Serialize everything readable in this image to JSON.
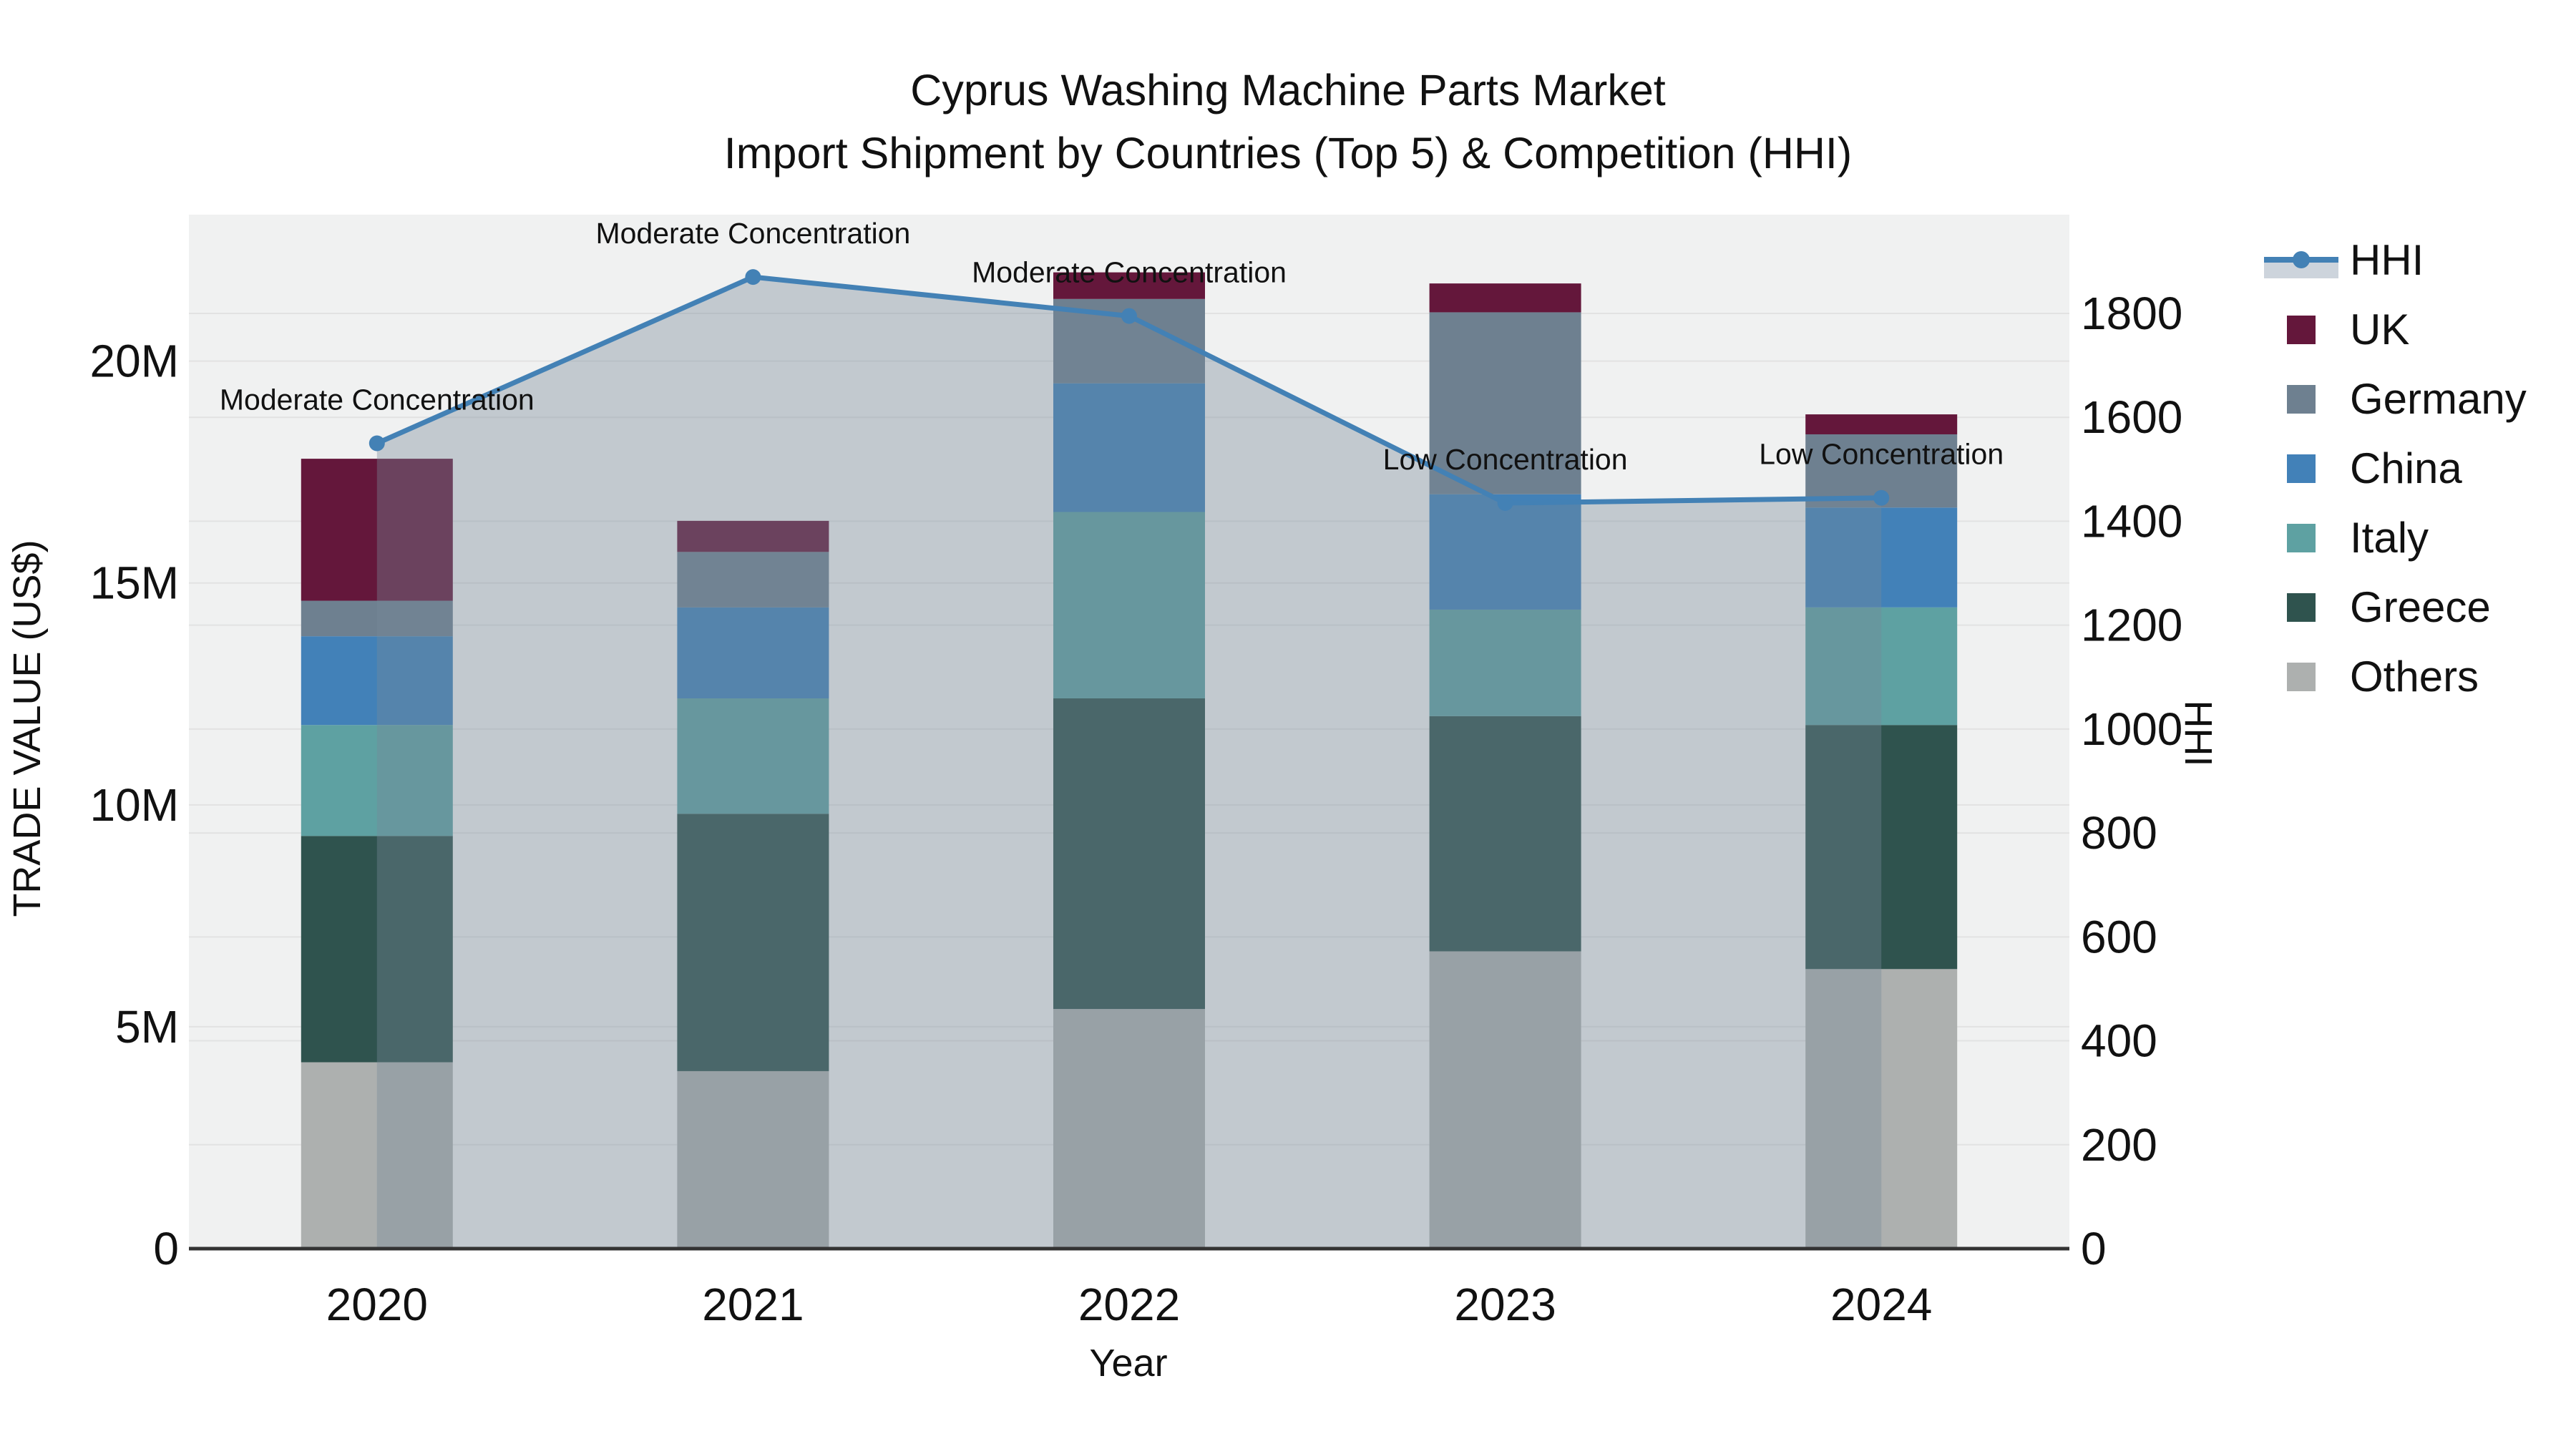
{
  "title": {
    "line1": "Cyprus Washing Machine Parts Market",
    "line2": "Import Shipment by Countries (Top 5) & Competition (HHI)"
  },
  "axes": {
    "x_title": "Year",
    "y_left_title": "TRADE VALUE (US$)",
    "y_right_title": "HHI",
    "x_ticks": [
      "2020",
      "2021",
      "2022",
      "2023",
      "2024"
    ],
    "y_left_ticks": [
      {
        "label": "0",
        "value": 0
      },
      {
        "label": "5M",
        "value": 5
      },
      {
        "label": "10M",
        "value": 10
      },
      {
        "label": "15M",
        "value": 15
      },
      {
        "label": "20M",
        "value": 20
      }
    ],
    "y_right_ticks": [
      0,
      200,
      400,
      600,
      800,
      1000,
      1200,
      1400,
      1600,
      1800
    ]
  },
  "legend": [
    {
      "label": "HHI",
      "type": "line",
      "color": "#4381b5",
      "fill": "#cdd4dc"
    },
    {
      "label": "UK",
      "type": "square",
      "color": "#64173b"
    },
    {
      "label": "Germany",
      "type": "square",
      "color": "#6e8090"
    },
    {
      "label": "China",
      "type": "square",
      "color": "#4281b8"
    },
    {
      "label": "Italy",
      "type": "square",
      "color": "#5ea1a2"
    },
    {
      "label": "Greece",
      "type": "square",
      "color": "#2f534e"
    },
    {
      "label": "Others",
      "type": "square",
      "color": "#adb0af"
    }
  ],
  "chart_data": {
    "type": "bar",
    "subtype": "stacked-bars-with-dual-axis-line",
    "title": "Cyprus Washing Machine Parts Market — Import Shipment by Countries (Top 5) & Competition (HHI)",
    "xlabel": "Year",
    "ylabel_left": "TRADE VALUE (US$)",
    "ylabel_right": "HHI",
    "y_left_units": "millions of US$",
    "y_left_range_millions": [
      0,
      23.3
    ],
    "y_right_range": [
      0,
      1990
    ],
    "grid": true,
    "legend_position": "right",
    "categories": [
      "2020",
      "2021",
      "2022",
      "2023",
      "2024"
    ],
    "bar_series": [
      {
        "name": "Others",
        "color": "#adb0af",
        "values_millions": [
          4.2,
          4.0,
          5.4,
          6.7,
          6.3
        ]
      },
      {
        "name": "Greece",
        "color": "#2f534e",
        "values_millions": [
          5.1,
          5.8,
          7.0,
          5.3,
          5.5
        ]
      },
      {
        "name": "Italy",
        "color": "#5ea1a2",
        "values_millions": [
          2.5,
          2.6,
          4.2,
          2.4,
          2.65
        ]
      },
      {
        "name": "China",
        "color": "#4281b8",
        "values_millions": [
          2.0,
          2.05,
          2.9,
          2.6,
          2.25
        ]
      },
      {
        "name": "Germany",
        "color": "#6e8090",
        "values_millions": [
          0.8,
          1.25,
          1.9,
          4.1,
          1.65
        ]
      },
      {
        "name": "UK",
        "color": "#64173b",
        "values_millions": [
          3.2,
          0.7,
          0.6,
          0.65,
          0.45
        ]
      }
    ],
    "bar_totals_millions": [
      17.8,
      16.4,
      22.0,
      21.75,
      18.8
    ],
    "line_series": {
      "name": "HHI",
      "axis": "right",
      "color": "#4381b5",
      "area_fill": "rgba(119,136,153,0.38)",
      "values": [
        1550,
        1870,
        1795,
        1435,
        1445
      ]
    },
    "annotations": [
      {
        "category": "2020",
        "text": "Moderate Concentration"
      },
      {
        "category": "2021",
        "text": "Moderate Concentration"
      },
      {
        "category": "2022",
        "text": "Moderate Concentration"
      },
      {
        "category": "2023",
        "text": "Low Concentration"
      },
      {
        "category": "2024",
        "text": "Low Concentration"
      }
    ]
  },
  "colors": {
    "plot_bg": "#f0f1f1",
    "grid_line": "#e2e2e2",
    "axis_line": "#333333",
    "text": "#111111",
    "page_bg": "#ffffff"
  }
}
